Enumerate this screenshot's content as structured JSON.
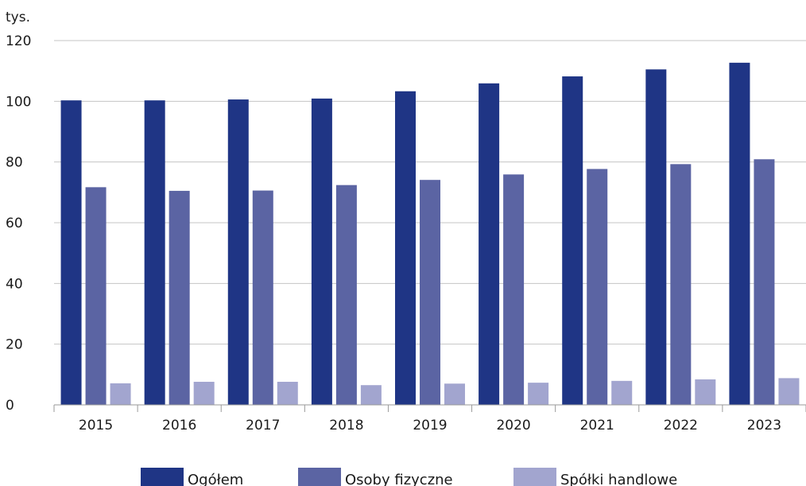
{
  "chart_data": {
    "type": "bar",
    "unit_label": "tys.",
    "categories": [
      "2015",
      "2016",
      "2017",
      "2018",
      "2019",
      "2020",
      "2021",
      "2022",
      "2023"
    ],
    "series": [
      {
        "name": "Ogółem",
        "color": "#1f3585",
        "values": [
          100.3,
          100.3,
          100.6,
          100.9,
          103.3,
          105.9,
          108.2,
          110.5,
          112.7
        ]
      },
      {
        "name": "Osoby fizyczne",
        "color": "#5b64a3",
        "values": [
          71.7,
          70.5,
          70.6,
          72.4,
          74.1,
          75.9,
          77.7,
          79.3,
          80.9
        ]
      },
      {
        "name": "Spółki handlowe",
        "color": "#a2a5cf",
        "values": [
          7.1,
          7.6,
          7.6,
          6.5,
          7.0,
          7.3,
          7.9,
          8.4,
          8.8
        ]
      }
    ],
    "yticks": [
      0,
      20,
      40,
      60,
      80,
      100,
      120
    ],
    "ylim": [
      0,
      120
    ],
    "grid": true,
    "legend_position": "bottom"
  }
}
